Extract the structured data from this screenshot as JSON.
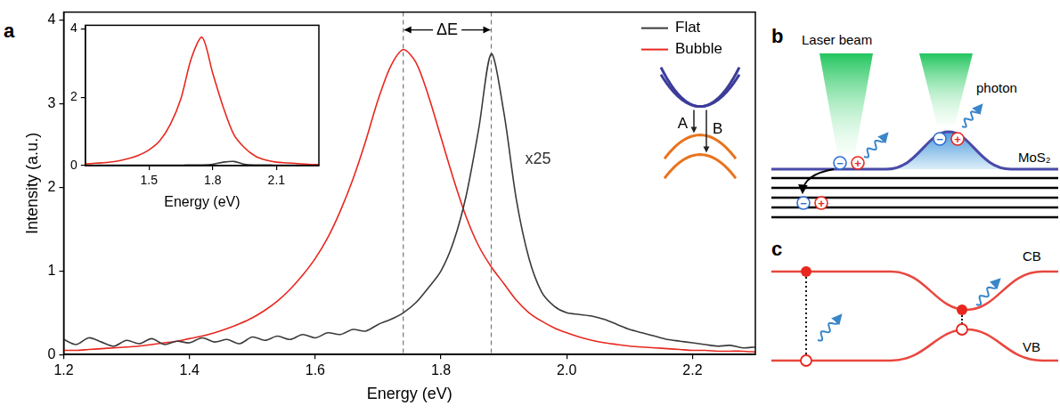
{
  "panel_labels": [
    "a",
    "b",
    "c"
  ],
  "chart_data": [
    {
      "type": "line",
      "x_label": "Energy (eV)",
      "y_label": "Intensity (a.u.)",
      "x": [
        1.2,
        1.22,
        1.24,
        1.26,
        1.28,
        1.3,
        1.32,
        1.34,
        1.36,
        1.38,
        1.4,
        1.42,
        1.44,
        1.46,
        1.48,
        1.5,
        1.52,
        1.54,
        1.56,
        1.58,
        1.6,
        1.62,
        1.64,
        1.66,
        1.68,
        1.7,
        1.72,
        1.74,
        1.76,
        1.78,
        1.8,
        1.82,
        1.84,
        1.86,
        1.88,
        1.9,
        1.92,
        1.94,
        1.96,
        1.98,
        2.0,
        2.02,
        2.04,
        2.06,
        2.08,
        2.1,
        2.12,
        2.14,
        2.16,
        2.18,
        2.2,
        2.22,
        2.24,
        2.26,
        2.28,
        2.3
      ],
      "series": [
        {
          "name": "Flat",
          "color": "#3a3a3a",
          "values": [
            0.18,
            0.12,
            0.2,
            0.15,
            0.1,
            0.17,
            0.13,
            0.19,
            0.12,
            0.16,
            0.14,
            0.2,
            0.15,
            0.18,
            0.13,
            0.21,
            0.17,
            0.22,
            0.18,
            0.24,
            0.2,
            0.26,
            0.24,
            0.3,
            0.28,
            0.36,
            0.42,
            0.5,
            0.62,
            0.8,
            1.0,
            1.35,
            1.9,
            2.7,
            3.6,
            2.9,
            1.85,
            1.15,
            0.75,
            0.58,
            0.5,
            0.48,
            0.46,
            0.42,
            0.36,
            0.3,
            0.26,
            0.22,
            0.18,
            0.16,
            0.14,
            0.12,
            0.1,
            0.11,
            0.08,
            0.09
          ]
        },
        {
          "name": "Bubble",
          "color": "#e8271e",
          "values": [
            0.05,
            0.05,
            0.06,
            0.07,
            0.08,
            0.09,
            0.1,
            0.12,
            0.14,
            0.16,
            0.19,
            0.22,
            0.26,
            0.31,
            0.37,
            0.44,
            0.53,
            0.64,
            0.78,
            0.95,
            1.15,
            1.4,
            1.72,
            2.1,
            2.55,
            3.05,
            3.45,
            3.65,
            3.5,
            3.1,
            2.6,
            2.1,
            1.65,
            1.3,
            1.05,
            0.85,
            0.65,
            0.5,
            0.4,
            0.32,
            0.26,
            0.21,
            0.17,
            0.14,
            0.12,
            0.1,
            0.09,
            0.08,
            0.07,
            0.06,
            0.05,
            0.05,
            0.04,
            0.04,
            0.04,
            0.03
          ]
        }
      ],
      "xlim": [
        1.2,
        2.3
      ],
      "xticks": [
        1.2,
        1.4,
        1.6,
        1.8,
        {
          "value": 2,
          "label": "2.0"
        },
        2.2
      ],
      "ylim": [
        0,
        4.1
      ],
      "yticks": [
        0,
        1,
        2,
        3,
        4
      ],
      "grid": false,
      "legend": "upper right",
      "annotations": {
        "dashed_lines": [
          1.74,
          1.88
        ],
        "gap_label": "ΔE",
        "scale_label": "x25",
        "transition_labels": [
          "A",
          "B"
        ]
      }
    },
    {
      "type": "line",
      "x_label": "Energy (eV)",
      "x": [
        1.2,
        1.25,
        1.3,
        1.35,
        1.4,
        1.45,
        1.5,
        1.55,
        1.6,
        1.65,
        1.7,
        1.75,
        1.8,
        1.85,
        1.9,
        1.95,
        2.0,
        2.05,
        2.1,
        2.15,
        2.2,
        2.25,
        2.3
      ],
      "series": [
        {
          "color": "#e8271e",
          "values": [
            0.05,
            0.07,
            0.09,
            0.13,
            0.2,
            0.3,
            0.46,
            0.72,
            1.2,
            1.95,
            3.15,
            3.75,
            2.7,
            1.7,
            0.9,
            0.52,
            0.28,
            0.16,
            0.1,
            0.08,
            0.06,
            0.04,
            0.03
          ]
        },
        {
          "color": "#3a3a3a",
          "values": [
            0.01,
            0.01,
            0.01,
            0.01,
            0.01,
            0.01,
            0.01,
            0.01,
            0.01,
            0.01,
            0.02,
            0.02,
            0.04,
            0.1,
            0.12,
            0.04,
            0.02,
            0.02,
            0.01,
            0.01,
            0.01,
            0.01,
            0.01
          ]
        }
      ],
      "xlim": [
        1.2,
        2.3
      ],
      "xticks": [
        1.5,
        1.8,
        2.1
      ],
      "ylim": [
        0,
        4.1
      ],
      "yticks": [
        0,
        2,
        4
      ],
      "grid": false
    }
  ],
  "schematic_b": {
    "beam": "Laser beam",
    "emission": "photon",
    "layer": "MoS₂",
    "carriers": [
      "−",
      "+"
    ]
  },
  "schematic_c": {
    "conduction_band": "CB",
    "valence_band": "VB"
  }
}
